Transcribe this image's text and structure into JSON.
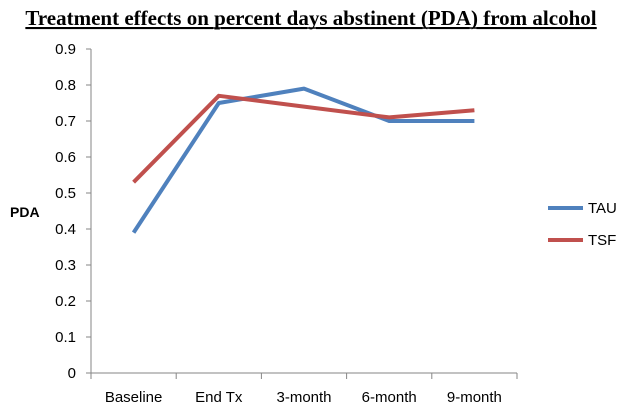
{
  "chart_data": {
    "type": "line",
    "title": "Treatment effects on percent days abstinent (PDA) from alcohol",
    "xlabel": "",
    "ylabel": "PDA",
    "categories": [
      "Baseline",
      "End Tx",
      "3-month",
      "6-month",
      "9-month"
    ],
    "ylim": [
      0,
      0.9
    ],
    "yticks": [
      "0",
      "0.1",
      "0.2",
      "0.3",
      "0.4",
      "0.5",
      "0.6",
      "0.7",
      "0.8",
      "0.9"
    ],
    "grid": false,
    "legend_position": "right",
    "series": [
      {
        "name": "TAU",
        "color": "#4F81BD",
        "values": [
          0.39,
          0.75,
          0.79,
          0.7,
          0.7
        ]
      },
      {
        "name": "TSF",
        "color": "#C0504D",
        "values": [
          0.53,
          0.77,
          0.74,
          0.71,
          0.73
        ]
      }
    ]
  }
}
